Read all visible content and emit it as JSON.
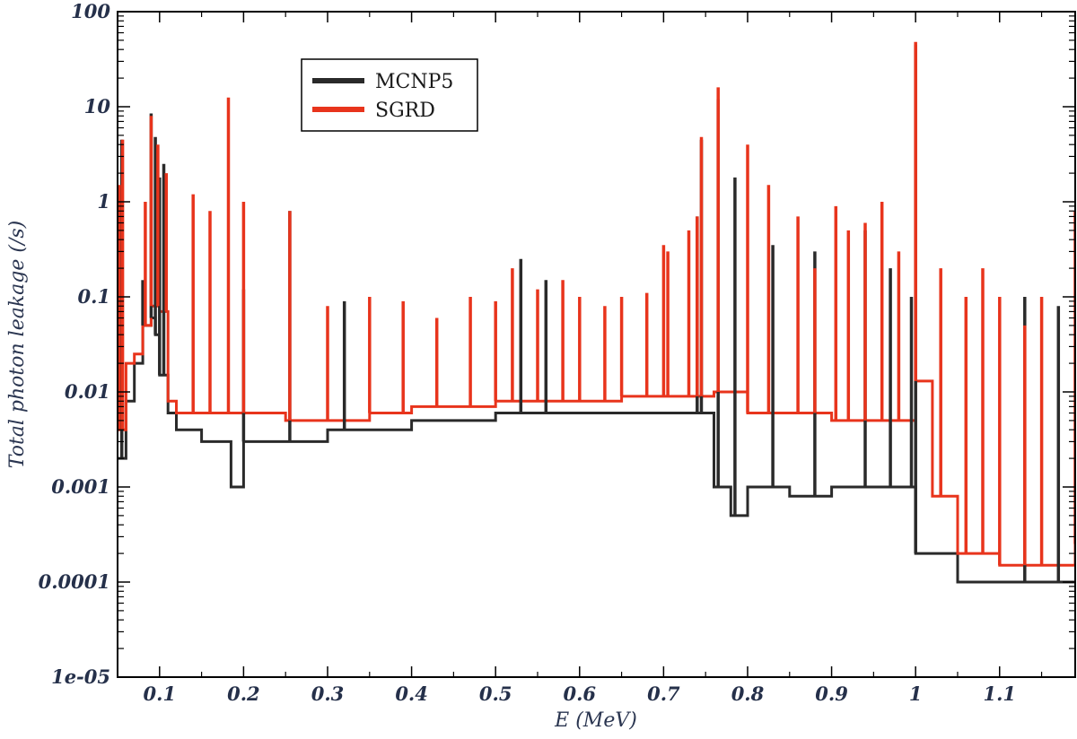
{
  "chart_data": {
    "type": "line",
    "title": "",
    "xlabel": "E (MeV)",
    "ylabel": "Total photon leakage (/s)",
    "xlim": [
      0.05,
      1.19
    ],
    "ylim": [
      1e-05,
      100
    ],
    "yscale": "log",
    "grid": false,
    "legend_position": "top-left",
    "x_ticks": [
      0.1,
      0.2,
      0.3,
      0.4,
      0.5,
      0.6,
      0.7,
      0.8,
      0.9,
      1.0,
      1.1
    ],
    "x_tick_labels": [
      "0.1",
      "0.2",
      "0.3",
      "0.4",
      "0.5",
      "0.6",
      "0.7",
      "0.8",
      "0.9",
      "1",
      "1.1"
    ],
    "y_ticks": [
      1e-05,
      0.0001,
      0.001,
      0.01,
      0.1,
      1,
      10,
      100
    ],
    "y_tick_labels": [
      "1e-05",
      "0.0001",
      "0.001",
      "0.01",
      "0.1",
      "1",
      "10",
      "100"
    ],
    "series": [
      {
        "name": "MCNP5",
        "color": "#2a2a2a",
        "style": "step",
        "x": [
          0.05,
          0.06,
          0.07,
          0.08,
          0.09,
          0.095,
          0.1,
          0.11,
          0.12,
          0.15,
          0.185,
          0.2,
          0.25,
          0.3,
          0.35,
          0.4,
          0.45,
          0.5,
          0.55,
          0.6,
          0.65,
          0.7,
          0.74,
          0.76,
          0.78,
          0.8,
          0.85,
          0.9,
          0.95,
          0.99,
          1.0,
          1.05,
          1.1,
          1.15,
          1.19
        ],
        "values": [
          0.002,
          0.008,
          0.02,
          0.05,
          0.06,
          0.04,
          0.015,
          0.006,
          0.004,
          0.003,
          0.001,
          0.003,
          0.003,
          0.004,
          0.004,
          0.005,
          0.005,
          0.006,
          0.006,
          0.006,
          0.006,
          0.006,
          0.006,
          0.001,
          0.0005,
          0.001,
          0.0008,
          0.001,
          0.001,
          0.001,
          0.0002,
          0.0001,
          0.0001,
          0.0001,
          0.0001
        ]
      },
      {
        "name": "SGRD",
        "color": "#e8341c",
        "style": "step",
        "x": [
          0.05,
          0.06,
          0.07,
          0.08,
          0.09,
          0.1,
          0.11,
          0.12,
          0.15,
          0.2,
          0.25,
          0.3,
          0.35,
          0.4,
          0.45,
          0.5,
          0.55,
          0.6,
          0.65,
          0.7,
          0.75,
          0.76,
          0.8,
          0.85,
          0.9,
          0.95,
          0.99,
          1.0,
          1.02,
          1.05,
          1.1,
          1.15,
          1.19
        ],
        "values": [
          0.004,
          0.02,
          0.025,
          0.05,
          0.08,
          0.07,
          0.008,
          0.006,
          0.006,
          0.006,
          0.005,
          0.005,
          0.006,
          0.007,
          0.007,
          0.008,
          0.008,
          0.008,
          0.009,
          0.009,
          0.009,
          0.01,
          0.006,
          0.006,
          0.005,
          0.005,
          0.005,
          0.013,
          0.0008,
          0.0002,
          0.00015,
          0.00015,
          0.00025
        ]
      }
    ],
    "peaks": {
      "MCNP5": {
        "x": [
          0.055,
          0.08,
          0.09,
          0.095,
          0.1,
          0.105,
          0.2,
          0.255,
          0.32,
          0.53,
          0.56,
          0.74,
          0.745,
          0.765,
          0.785,
          0.83,
          0.88,
          0.94,
          0.97,
          0.995,
          1.0,
          1.13,
          1.17
        ],
        "values": [
          4.5,
          0.15,
          8.5,
          4.8,
          1.8,
          2.5,
          0.12,
          0.8,
          0.09,
          0.25,
          0.15,
          0.7,
          4.5,
          12.0,
          1.8,
          0.35,
          0.3,
          0.5,
          0.2,
          0.1,
          45.0,
          0.1,
          0.08
        ]
      },
      "SGRD": {
        "x": [
          0.052,
          0.056,
          0.083,
          0.09,
          0.098,
          0.108,
          0.14,
          0.16,
          0.182,
          0.2,
          0.255,
          0.3,
          0.35,
          0.39,
          0.43,
          0.47,
          0.5,
          0.52,
          0.55,
          0.58,
          0.6,
          0.63,
          0.65,
          0.68,
          0.7,
          0.705,
          0.73,
          0.74,
          0.745,
          0.765,
          0.8,
          0.825,
          0.86,
          0.88,
          0.905,
          0.92,
          0.94,
          0.96,
          0.98,
          1.0,
          1.03,
          1.06,
          1.08,
          1.1,
          1.13,
          1.15,
          1.19
        ],
        "values": [
          1.5,
          4.5,
          1.0,
          8.0,
          4.0,
          2.0,
          1.2,
          0.8,
          12.5,
          1.0,
          0.8,
          0.08,
          0.1,
          0.09,
          0.06,
          0.1,
          0.09,
          0.2,
          0.12,
          0.15,
          0.1,
          0.08,
          0.1,
          0.11,
          0.35,
          0.3,
          0.5,
          0.7,
          4.8,
          16.0,
          4.0,
          1.5,
          0.7,
          0.2,
          0.9,
          0.5,
          0.6,
          1.0,
          0.3,
          48.0,
          0.2,
          0.1,
          0.2,
          0.1,
          0.05,
          0.1,
          0.8
        ]
      }
    }
  }
}
